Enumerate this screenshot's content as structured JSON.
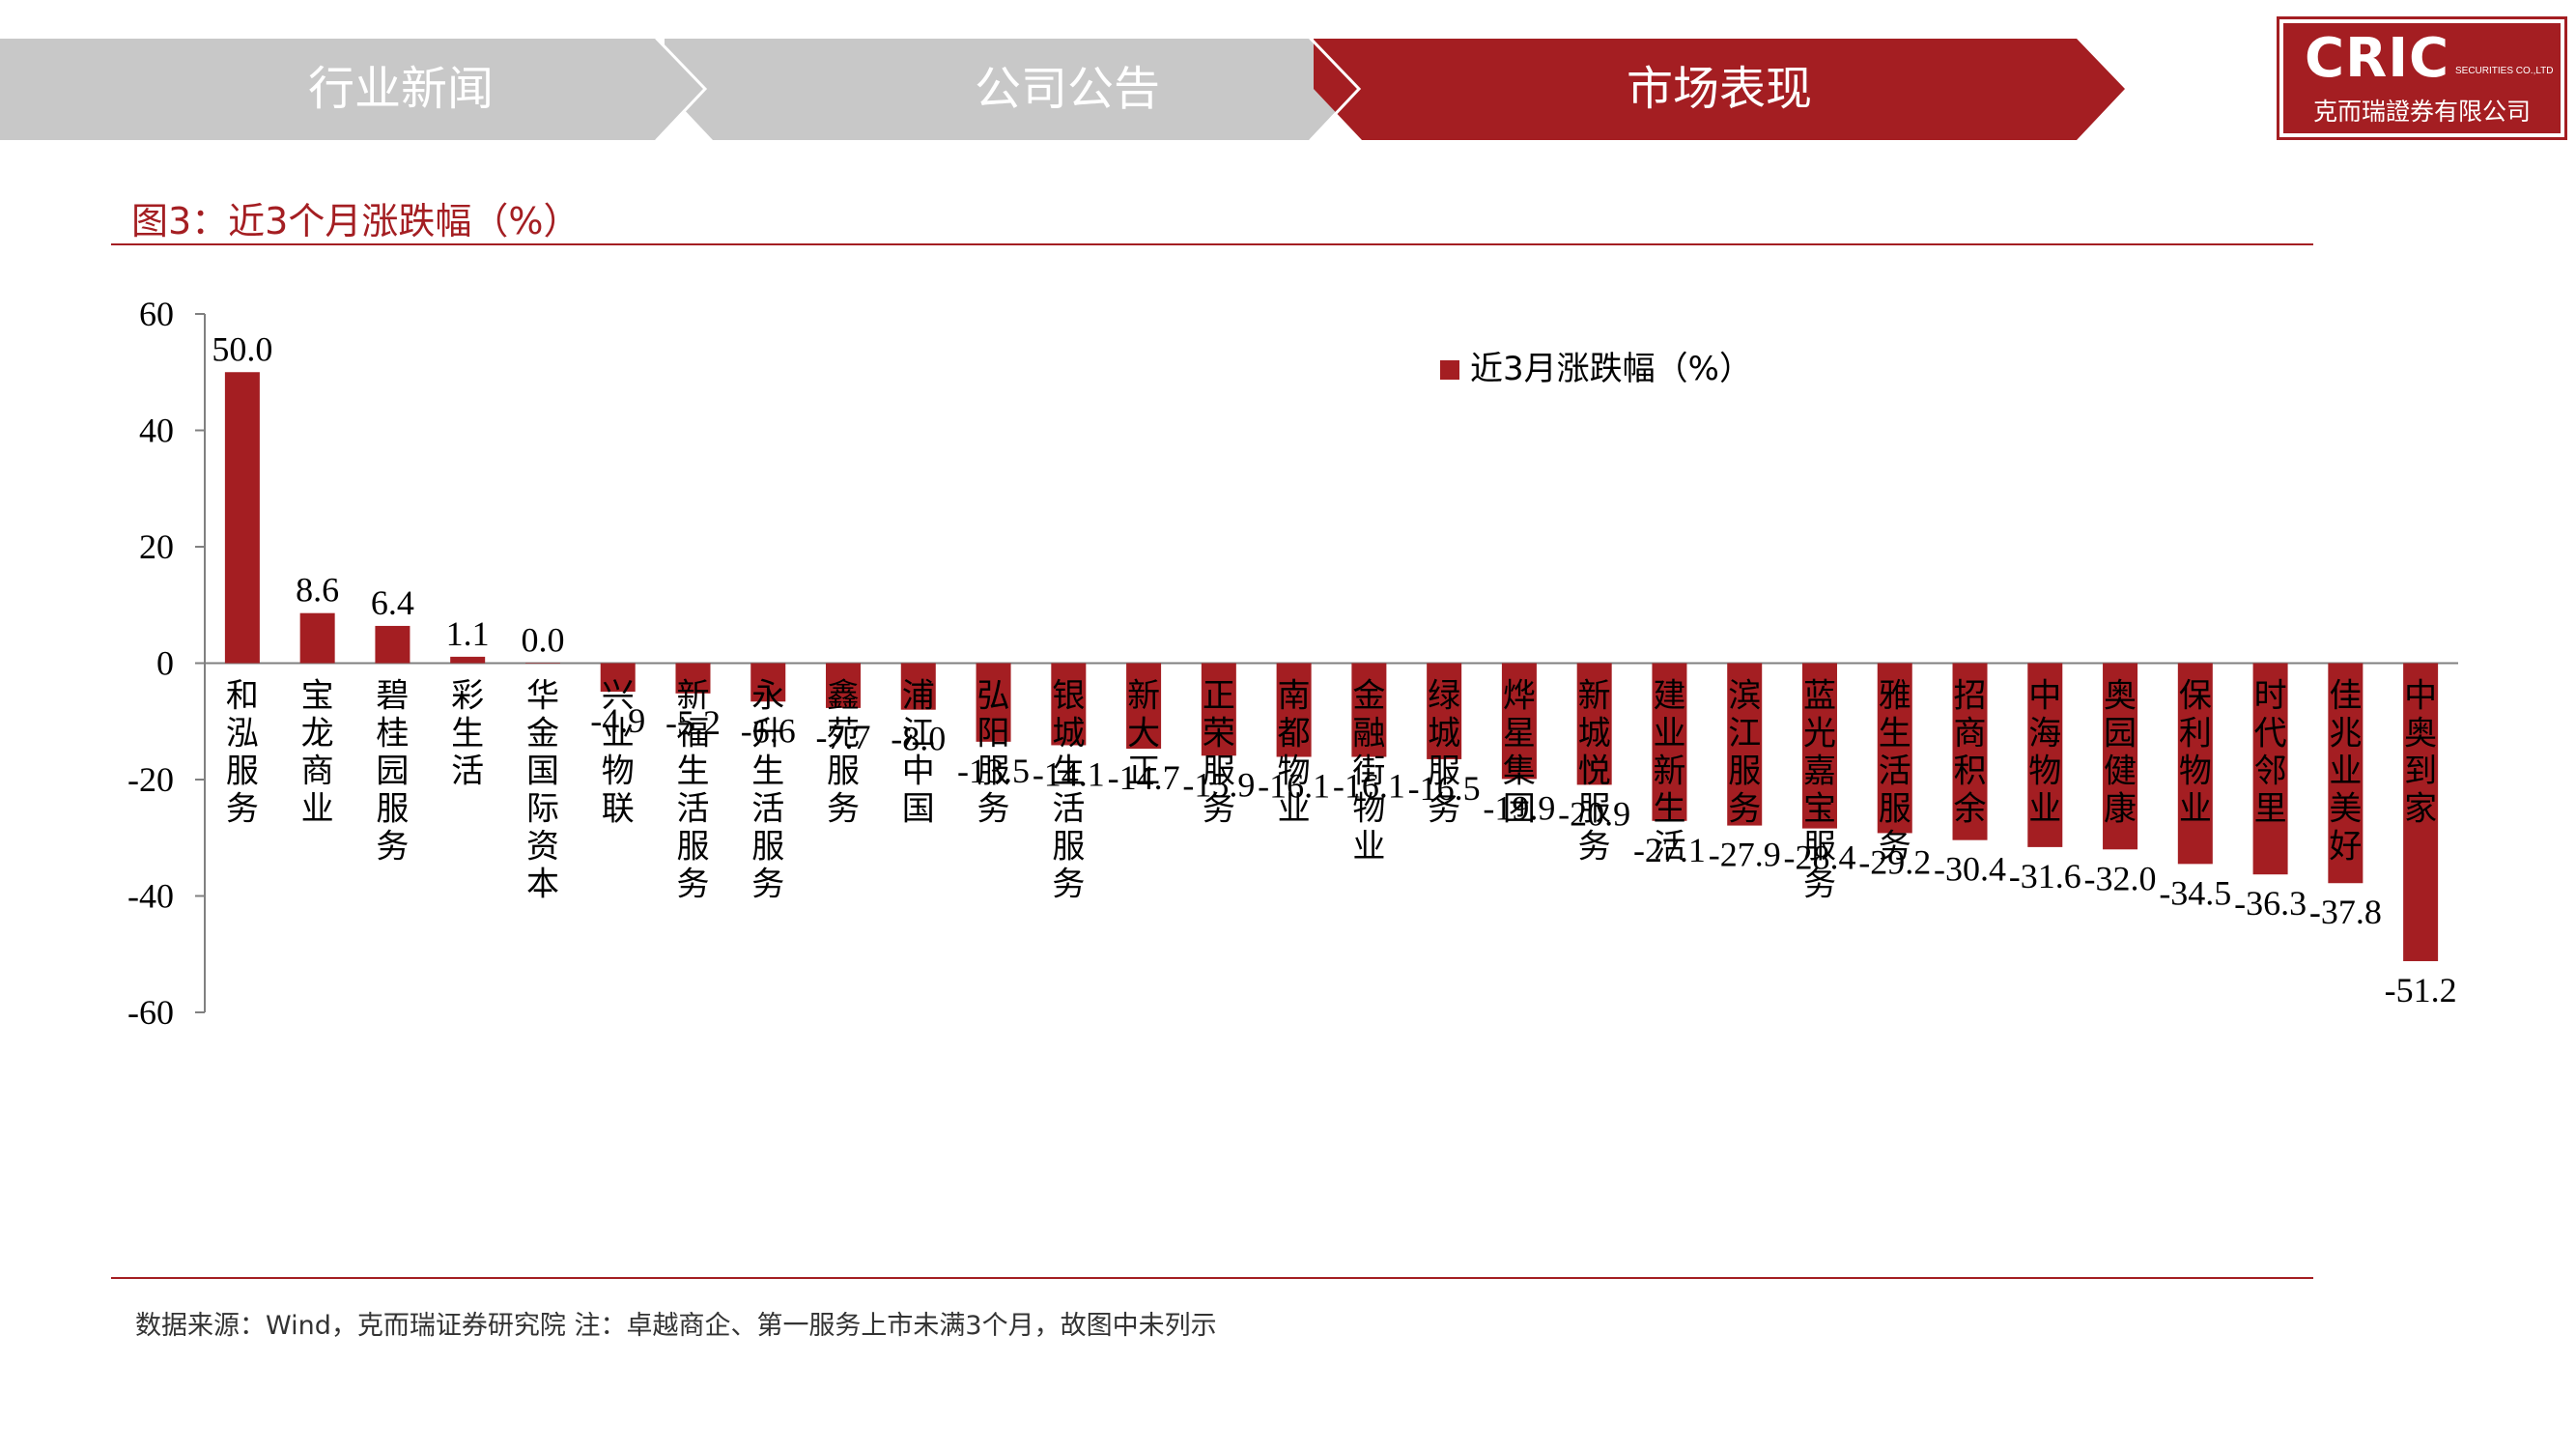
{
  "nav": {
    "tabs": [
      {
        "label": "行业新闻",
        "active": false
      },
      {
        "label": "公司公告",
        "active": false
      },
      {
        "label": "市场表现",
        "active": true
      }
    ]
  },
  "logo": {
    "main": "CRIC",
    "sub": "SECURITIES CO.,LTD",
    "cn": "克而瑞證券有限公司"
  },
  "figure_title": "图3：近3个月涨跌幅（%）",
  "source_note": "数据来源：Wind，克而瑞证券研究院   注：卓越商企、第一服务上市未满3个月，故图中未列示",
  "colors": {
    "accent": "#a41e22",
    "tab_inactive": "#c8c8c8",
    "text": "#000000"
  },
  "chart_data": {
    "type": "bar",
    "title": "",
    "xlabel": "",
    "ylabel": "",
    "ylim": [
      -60,
      60
    ],
    "yticks": [
      "60",
      "40",
      "20",
      "0",
      "-20",
      "-40",
      "-60"
    ],
    "legend_position": "top-right",
    "grid": false,
    "categories": [
      "和泓服务",
      "宝龙商业",
      "碧桂园服务",
      "彩生活",
      "华金国际资本",
      "兴业物联",
      "新福生活服务",
      "永升生活服务",
      "鑫苑服务",
      "浦江中国",
      "弘阳服务",
      "银城生活服务",
      "新大正",
      "正荣服务",
      "南都物业",
      "金融街物业",
      "绿城服务",
      "烨星集团",
      "新城悦服务",
      "建业新生活",
      "滨江服务",
      "蓝光嘉宝服务",
      "雅生活服务",
      "招商积余",
      "中海物业",
      "奥园健康",
      "保利物业",
      "时代邻里",
      "佳兆业美好",
      "中奥到家"
    ],
    "series": [
      {
        "name": "近3月涨跌幅（%）",
        "values": [
          50.0,
          8.6,
          6.4,
          1.1,
          0.0,
          -4.9,
          -5.2,
          -6.6,
          -7.7,
          -8.0,
          -13.5,
          -14.1,
          -14.7,
          -15.9,
          -16.1,
          -16.1,
          -16.5,
          -19.9,
          -20.9,
          -27.1,
          -27.9,
          -28.4,
          -29.2,
          -30.4,
          -31.6,
          -32.0,
          -34.5,
          -36.3,
          -37.8,
          -51.2
        ],
        "labels": [
          "50.0",
          "8.6",
          "6.4",
          "1.1",
          "0.0",
          "-4.9",
          "-5.2",
          "-6.6",
          "-7.7",
          "-8.0",
          "-13.5",
          "-14.1",
          "-14.7",
          "-15.9",
          "-16.1",
          "-16.1",
          "-16.5",
          "-19.9",
          "-20.9",
          "-27.1",
          "-27.9",
          "-28.4",
          "-29.2",
          "-30.4",
          "-31.6",
          "-32.0",
          "-34.5",
          "-36.3",
          "-37.8",
          "-51.2"
        ],
        "color": "#a41e22"
      }
    ]
  }
}
